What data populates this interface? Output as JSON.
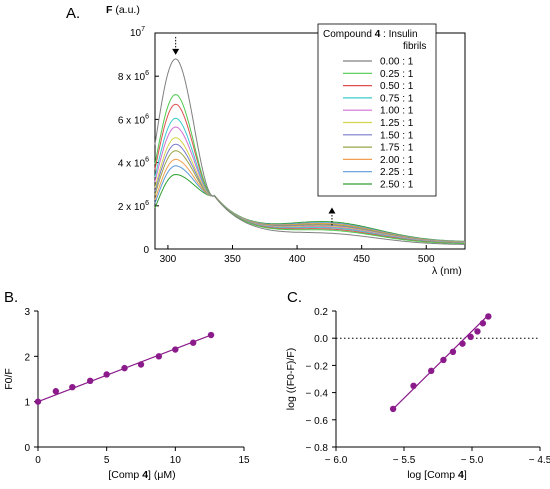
{
  "chart_data": [
    {
      "panel": "A.",
      "type": "line",
      "ylabel_bold": "F",
      "ylabel": "(a.u.)",
      "xlabel": "λ (nm)",
      "y_multiplier": "10",
      "y_multiplier_exp": "7",
      "xlim": [
        290,
        530
      ],
      "ylim": [
        0,
        10000000
      ],
      "x_ticks": [
        "300",
        "350",
        "400",
        "450",
        "500"
      ],
      "y_ticks": [
        {
          "value": 0,
          "mant": "0",
          "exp": ""
        },
        {
          "value": 2000000,
          "mant": "2 x 10",
          "exp": "6"
        },
        {
          "value": 4000000,
          "mant": "4 x 10",
          "exp": "6"
        },
        {
          "value": 6000000,
          "mant": "6 x 10",
          "exp": "6"
        },
        {
          "value": 8000000,
          "mant": "8 x 10",
          "exp": "6"
        }
      ],
      "legend_title_prefix": "Compound ",
      "legend_title_bold": "4",
      "legend_title_suffix": " : Insulin",
      "legend_title_line2": "fibrils",
      "legend_position": "top-right",
      "series": [
        {
          "name": "0.00 : 1",
          "color": "#808080",
          "peak": 8800000,
          "tail": 450000
        },
        {
          "name": "0.25 : 1",
          "color": "#4ec94e",
          "peak": 7150000,
          "tail": 560000
        },
        {
          "name": "0.50 : 1",
          "color": "#e05050",
          "peak": 6700000,
          "tail": 600000
        },
        {
          "name": "0.75 : 1",
          "color": "#3ccccc",
          "peak": 6050000,
          "tail": 640000
        },
        {
          "name": "1.00 : 1",
          "color": "#d070d0",
          "peak": 5650000,
          "tail": 670000
        },
        {
          "name": "1.25 : 1",
          "color": "#d4d44a",
          "peak": 5150000,
          "tail": 700000
        },
        {
          "name": "1.50 : 1",
          "color": "#7a7acc",
          "peak": 4850000,
          "tail": 730000
        },
        {
          "name": "1.75 : 1",
          "color": "#9aa648",
          "peak": 4550000,
          "tail": 760000
        },
        {
          "name": "2.00 : 1",
          "color": "#f0a050",
          "peak": 4150000,
          "tail": 790000
        },
        {
          "name": "2.25 : 1",
          "color": "#5a9ad8",
          "peak": 3850000,
          "tail": 820000
        },
        {
          "name": "2.50 : 1",
          "color": "#30a030",
          "peak": 3450000,
          "tail": 860000
        }
      ],
      "isosbestic_point": [
        335,
        2450000
      ],
      "peak_wavelength": 306,
      "arrow_down_at": [
        306,
        8800000
      ],
      "arrow_up_at": [
        427,
        900000
      ]
    },
    {
      "panel": "B.",
      "type": "scatter",
      "ylabel": "F0/F",
      "xlabel_prefix": "[Comp ",
      "xlabel_bold": "4",
      "xlabel_suffix": "] (μM)",
      "xlim": [
        0,
        15
      ],
      "ylim": [
        0,
        3
      ],
      "x_ticks": [
        "0",
        "5",
        "10",
        "15"
      ],
      "y_ticks": [
        "0",
        "1",
        "2",
        "3"
      ],
      "color": "#8b1a8b",
      "points": [
        {
          "x": 0.0,
          "y": 1.0
        },
        {
          "x": 1.3,
          "y": 1.23
        },
        {
          "x": 2.5,
          "y": 1.32
        },
        {
          "x": 3.8,
          "y": 1.46
        },
        {
          "x": 5.0,
          "y": 1.6
        },
        {
          "x": 6.3,
          "y": 1.74
        },
        {
          "x": 7.5,
          "y": 1.82
        },
        {
          "x": 8.8,
          "y": 2.0
        },
        {
          "x": 10.0,
          "y": 2.15
        },
        {
          "x": 11.3,
          "y": 2.3
        },
        {
          "x": 12.6,
          "y": 2.47
        }
      ],
      "fit_line": [
        [
          0,
          1.0
        ],
        [
          12.6,
          2.47
        ]
      ]
    },
    {
      "panel": "C.",
      "type": "scatter",
      "ylabel": "log ((F0-F)/F)",
      "xlabel_prefix": "log [Comp ",
      "xlabel_bold": "4",
      "xlabel_suffix": "]",
      "xlim": [
        -6.0,
        -4.5
      ],
      "ylim": [
        -0.8,
        0.2
      ],
      "x_ticks": [
        {
          "value": -6.0,
          "label": "− 6.0"
        },
        {
          "value": -5.5,
          "label": "− 5.5"
        },
        {
          "value": -5.0,
          "label": "− 5.0"
        },
        {
          "value": -4.5,
          "label": "− 4.5"
        }
      ],
      "y_ticks": [
        {
          "value": 0.2,
          "label": "0.2"
        },
        {
          "value": 0.0,
          "label": "0.0"
        },
        {
          "value": -0.2,
          "label": "− 0.2"
        },
        {
          "value": -0.4,
          "label": "− 0.4"
        },
        {
          "value": -0.6,
          "label": "− 0.6"
        },
        {
          "value": -0.8,
          "label": "− 0.8"
        }
      ],
      "color": "#8b1a8b",
      "reference_line_y": 0.0,
      "points": [
        {
          "x": -5.58,
          "y": -0.52
        },
        {
          "x": -5.43,
          "y": -0.35
        },
        {
          "x": -5.3,
          "y": -0.24
        },
        {
          "x": -5.21,
          "y": -0.16
        },
        {
          "x": -5.14,
          "y": -0.1
        },
        {
          "x": -5.07,
          "y": -0.04
        },
        {
          "x": -5.01,
          "y": 0.01
        },
        {
          "x": -4.96,
          "y": 0.05
        },
        {
          "x": -4.92,
          "y": 0.11
        },
        {
          "x": -4.88,
          "y": 0.16
        }
      ],
      "fit_line": [
        [
          -5.58,
          -0.52
        ],
        [
          -4.88,
          0.17
        ]
      ]
    }
  ]
}
